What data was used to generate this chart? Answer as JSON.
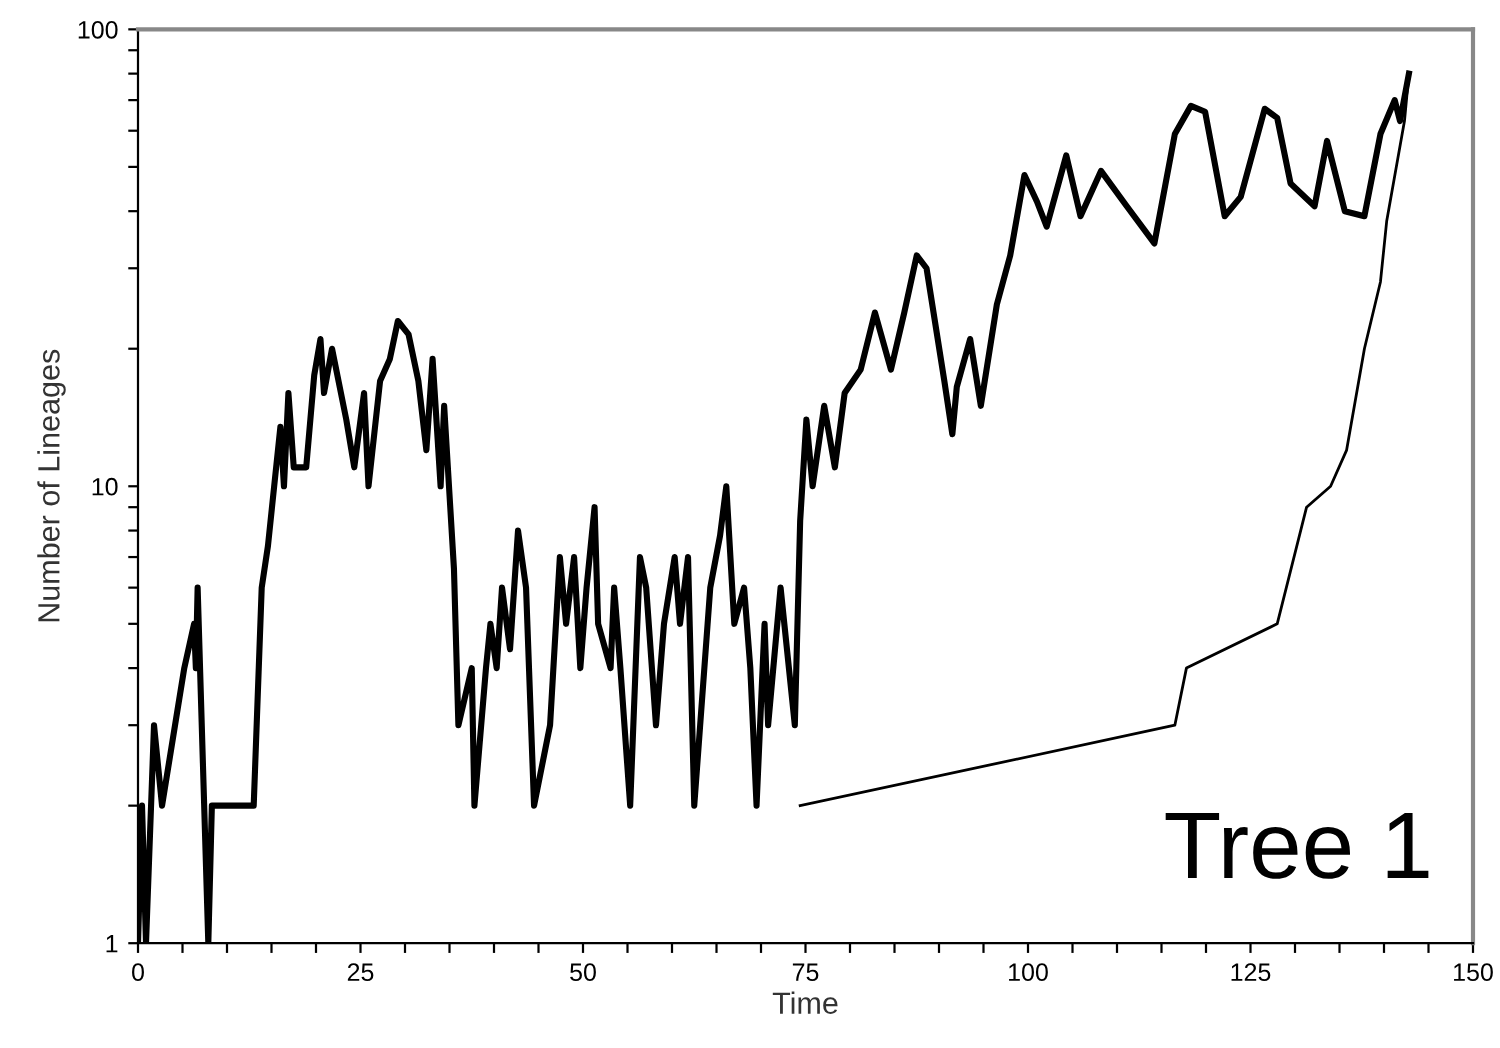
{
  "chart_data": {
    "type": "line",
    "xlabel": "Time",
    "ylabel": "Number of Lineages",
    "log": "y",
    "xlim": [
      0,
      150
    ],
    "ylim": [
      1,
      100
    ],
    "xticks": [
      0,
      {
        "value": 5,
        "label": null
      },
      {
        "value": 10,
        "label": null
      },
      {
        "value": 15,
        "label": null
      },
      {
        "value": 20,
        "label": null
      },
      25,
      {
        "value": 30,
        "label": null
      },
      {
        "value": 35,
        "label": null
      },
      {
        "value": 40,
        "label": null
      },
      {
        "value": 45,
        "label": null
      },
      50,
      {
        "value": 55,
        "label": null
      },
      {
        "value": 60,
        "label": null
      },
      {
        "value": 65,
        "label": null
      },
      {
        "value": 70,
        "label": null
      },
      75,
      {
        "value": 80,
        "label": null
      },
      {
        "value": 85,
        "label": null
      },
      {
        "value": 90,
        "label": null
      },
      {
        "value": 95,
        "label": null
      },
      100,
      {
        "value": 105,
        "label": null
      },
      {
        "value": 110,
        "label": null
      },
      {
        "value": 115,
        "label": null
      },
      {
        "value": 120,
        "label": null
      },
      125,
      {
        "value": 130,
        "label": null
      },
      {
        "value": 135,
        "label": null
      },
      {
        "value": 140,
        "label": null
      },
      {
        "value": 145,
        "label": null
      },
      150
    ],
    "yticks": [
      1,
      {
        "value": 2,
        "label": null
      },
      {
        "value": 3,
        "label": null
      },
      {
        "value": 4,
        "label": null
      },
      {
        "value": 5,
        "label": null
      },
      {
        "value": 6,
        "label": null
      },
      {
        "value": 7,
        "label": null
      },
      {
        "value": 8,
        "label": null
      },
      {
        "value": 9,
        "label": null
      },
      10,
      {
        "value": 20,
        "label": null
      },
      {
        "value": 30,
        "label": null
      },
      {
        "value": 40,
        "label": null
      },
      {
        "value": 50,
        "label": null
      },
      {
        "value": 60,
        "label": null
      },
      {
        "value": 70,
        "label": null
      },
      {
        "value": 80,
        "label": null
      },
      {
        "value": 90,
        "label": null
      },
      100
    ],
    "grid": false,
    "legend": false,
    "marker": "none",
    "line_style": "solid",
    "series": [
      {
        "color": "#000000",
        "x": [
          0,
          0.45,
          0.9,
          1.8,
          2.7,
          5.2,
          6.3,
          6.5,
          6.7,
          7.9,
          8.3,
          13.0,
          13.9,
          14.6,
          15.3,
          16.0,
          16.4,
          16.9,
          17.5,
          18.9,
          19.8,
          20.5,
          20.9,
          21.8,
          23.4,
          24.3,
          25.4,
          25.9,
          27.2,
          28.3,
          29.2,
          30.4,
          31.5,
          32.4,
          33.1,
          34.0,
          34.4,
          35.5,
          36.0,
          37.5,
          37.8,
          39.1,
          39.6,
          40.3,
          40.9,
          41.8,
          42.7,
          43.6,
          44.5,
          46.3,
          47.4,
          48.1,
          49.0,
          49.7,
          50.4,
          51.3,
          51.7,
          53.1,
          53.5,
          54.2,
          55.3,
          56.4,
          57.1,
          58.2,
          59.1,
          60.3,
          60.9,
          61.8,
          62.5,
          64.3,
          65.4,
          66.1,
          67.0,
          68.1,
          68.8,
          69.5,
          70.4,
          70.8,
          72.2,
          73.8,
          74.4,
          75.1,
          75.8,
          77.1,
          78.3,
          79.4,
          81.2,
          82.8,
          84.6,
          86.1,
          87.5,
          88.6,
          90.6,
          91.5,
          92.0,
          93.5,
          94.7,
          96.5,
          98.0,
          99.6,
          101.0,
          102.1,
          104.3,
          105.9,
          108.2,
          111.1,
          114.2,
          116.5,
          118.3,
          119.9,
          122.1,
          123.9,
          126.6,
          128.0,
          129.5,
          132.2,
          133.6,
          135.6,
          137.8,
          139.6,
          141.2,
          141.8,
          142.8
        ],
        "values": [
          1,
          2,
          1,
          3,
          2,
          4,
          5,
          4,
          6,
          1,
          2,
          2,
          6,
          7.4,
          10,
          13.5,
          10,
          16,
          11,
          11,
          17.5,
          21,
          16,
          20,
          14,
          11,
          16,
          10,
          17,
          19,
          23,
          21.5,
          17,
          12,
          19,
          10,
          15,
          6.6,
          3,
          4,
          2,
          4,
          5,
          4,
          6,
          4.4,
          8,
          6,
          2,
          3,
          7,
          5,
          7,
          4,
          6,
          9,
          5,
          4,
          6,
          4,
          2,
          7,
          6,
          3,
          5,
          7,
          5,
          7,
          2,
          6,
          7.8,
          10,
          5,
          6,
          4,
          2,
          5,
          3,
          6,
          3,
          8.4,
          14,
          10,
          15,
          11,
          16,
          18,
          24,
          18,
          24,
          32,
          30,
          17,
          13,
          16.5,
          21,
          15,
          25,
          32,
          48,
          42,
          37,
          53,
          39,
          49,
          41,
          34,
          59,
          68,
          66,
          39,
          43,
          67,
          64,
          46,
          41,
          57,
          40,
          39,
          59,
          70,
          63,
          80
        ]
      },
      {
        "color": "#000000",
        "x": [
          74.4,
          116.5,
          117.8,
          128.0,
          131.3,
          134.0,
          135.8,
          137.8,
          139.6,
          140.3,
          142.3,
          142.8
        ],
        "values": [
          2,
          3,
          4,
          5,
          9,
          10,
          12,
          20,
          28,
          38,
          63,
          80
        ]
      }
    ],
    "annotations": [
      "Tree 1"
    ]
  }
}
